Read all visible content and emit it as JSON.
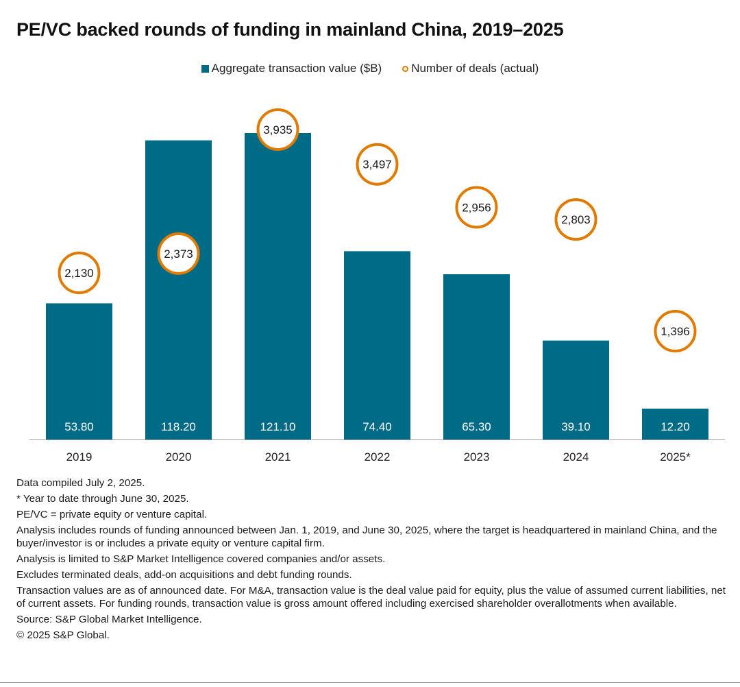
{
  "chart_data": {
    "type": "bar",
    "title": "PE/VC backed rounds of funding in mainland China, 2019–2025",
    "categories": [
      "2019",
      "2020",
      "2021",
      "2022",
      "2023",
      "2024",
      "2025*"
    ],
    "series": [
      {
        "name": "Aggregate transaction value ($B)",
        "type": "bar",
        "color": "#006b87",
        "values": [
          53.8,
          118.2,
          121.1,
          74.4,
          65.3,
          39.1,
          12.2
        ],
        "labels": [
          "53.80",
          "118.20",
          "121.10",
          "74.40",
          "65.30",
          "39.10",
          "12.20"
        ]
      },
      {
        "name": "Number of deals (actual)",
        "type": "circle-marker",
        "color": "#e07b00",
        "values": [
          2130,
          2373,
          3935,
          3497,
          2956,
          2803,
          1396
        ],
        "labels": [
          "2,130",
          "2,373",
          "3,935",
          "3,497",
          "2,956",
          "2,803",
          "1,396"
        ]
      }
    ],
    "axes": {
      "ylim_value": [
        0,
        125
      ],
      "ylim_deals": [
        0,
        4500
      ],
      "visible_y_axis": false,
      "grid": false
    },
    "legend_position": "top-center"
  },
  "notes": [
    "Data compiled July 2, 2025.",
    "* Year to date through June 30, 2025.",
    "PE/VC = private equity or venture capital.",
    "Analysis includes rounds of funding announced between Jan. 1, 2019, and June 30, 2025, where the target is headquartered in mainland China, and the buyer/investor is or includes a private equity or venture capital firm.",
    "Analysis is limited to S&P Market Intelligence covered companies and/or assets.",
    "Excludes terminated deals, add-on acquisitions and debt funding rounds.",
    "Transaction values are as of announced date. For M&A, transaction value is the deal value paid for equity, plus the value of assumed current liabilities, net of current assets. For funding rounds, transaction value is gross amount offered including exercised shareholder overallotments when available.",
    "Source: S&P Global Market Intelligence.",
    "© 2025 S&P Global."
  ]
}
